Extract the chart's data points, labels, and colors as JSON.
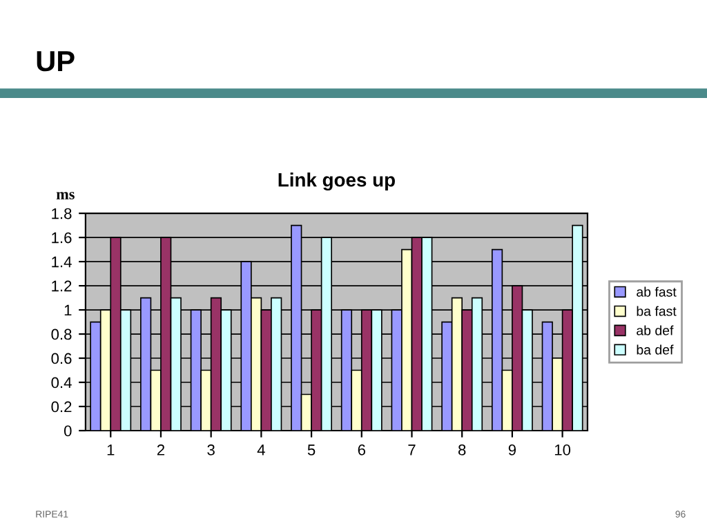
{
  "chart_data": {
    "type": "bar",
    "title": "UP",
    "subtitle": "Link goes up",
    "ylabel": "ms",
    "categories": [
      "1",
      "2",
      "3",
      "4",
      "5",
      "6",
      "7",
      "8",
      "9",
      "10"
    ],
    "series": [
      {
        "name": "ab fast",
        "color": "#9999ff",
        "values": [
          0.9,
          1.1,
          1.0,
          1.4,
          1.7,
          1.0,
          1.0,
          0.9,
          1.5,
          0.9
        ]
      },
      {
        "name": "ba fast",
        "color": "#ffffcc",
        "values": [
          1.0,
          0.5,
          0.5,
          1.1,
          0.3,
          0.5,
          1.5,
          1.1,
          0.5,
          0.6
        ]
      },
      {
        "name": "ab def",
        "color": "#993366",
        "values": [
          1.6,
          1.6,
          1.1,
          1.0,
          1.0,
          1.0,
          1.6,
          1.0,
          1.2,
          1.0
        ]
      },
      {
        "name": "ba def",
        "color": "#ccffff",
        "values": [
          1.0,
          1.1,
          1.0,
          1.1,
          1.6,
          1.0,
          1.6,
          1.1,
          1.0,
          1.7
        ]
      }
    ],
    "ylim": [
      0,
      1.8
    ],
    "yticks": [
      0,
      0.2,
      0.4,
      0.6,
      0.8,
      1,
      1.2,
      1.4,
      1.6,
      1.8
    ],
    "grid": "y",
    "legend": "right",
    "annotations": [
      "RIPE41",
      "96"
    ]
  }
}
